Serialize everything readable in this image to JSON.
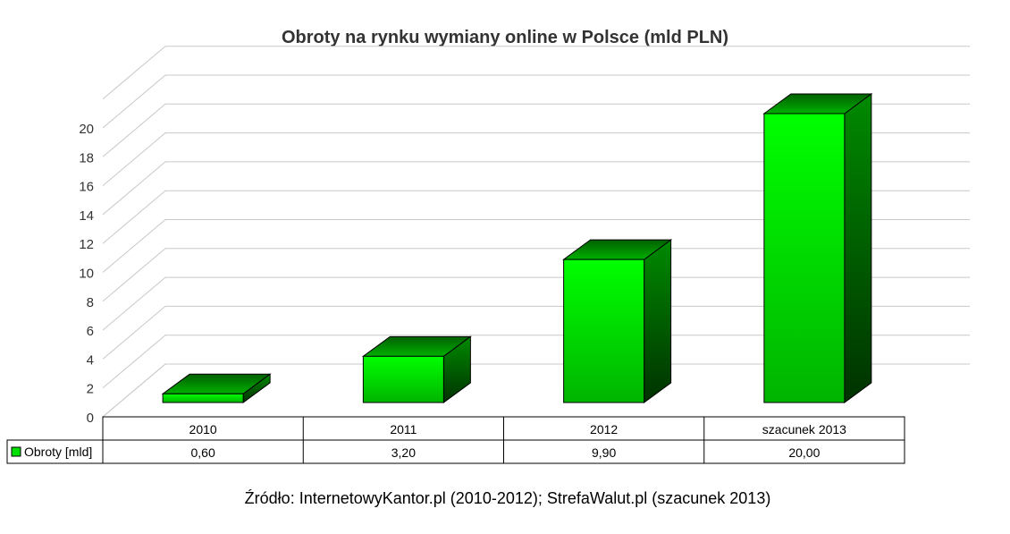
{
  "chart_data": {
    "type": "bar",
    "title": "Obroty na rynku wymiany online w Polsce (mld PLN)",
    "categories": [
      "2010",
      "2011",
      "2012",
      "szacunek 2013"
    ],
    "series": [
      {
        "name": "Obroty [mld]",
        "values": [
          0.6,
          3.2,
          9.9,
          20.0
        ],
        "labels": [
          "0,60",
          "3,20",
          "9,90",
          "20,00"
        ]
      }
    ],
    "yticks": [
      "0",
      "2",
      "4",
      "6",
      "8",
      "10",
      "12",
      "14",
      "16",
      "18",
      "20"
    ],
    "ylim": [
      0,
      22
    ],
    "grid": true,
    "legend": "data-table-left",
    "style": "3d",
    "colors": {
      "front_light": "#00ff00",
      "front_dark": "#00a800",
      "side": "#006400",
      "top": "#009000"
    }
  },
  "source": "Źródło: InternetowyKantor.pl (2010-2012); StrefaWalut.pl (szacunek 2013)"
}
